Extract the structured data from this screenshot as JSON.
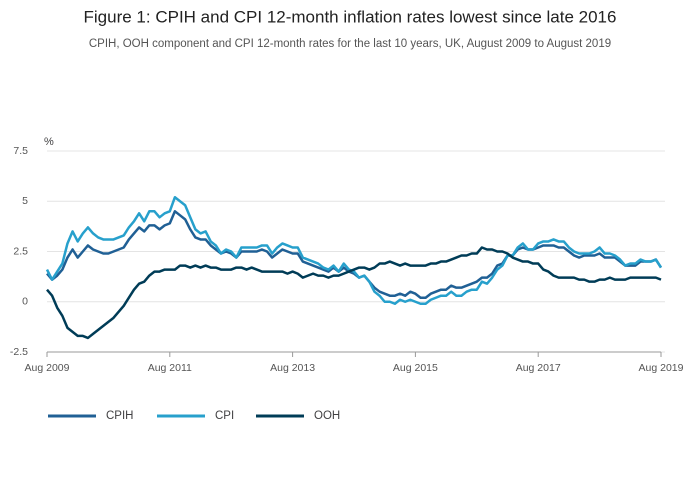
{
  "chart_data": {
    "type": "line",
    "title": "Figure 1: CPIH and CPI 12-month inflation rates lowest since late 2016",
    "subtitle": "CPIH, OOH component and CPI 12-month rates for the last 10 years, UK, August 2009 to August 2019",
    "y_label": "%",
    "categories": [
      "Aug 2009",
      null,
      null,
      null,
      null,
      null,
      null,
      null,
      null,
      null,
      null,
      null,
      null,
      null,
      null,
      null,
      null,
      null,
      null,
      null,
      null,
      null,
      null,
      null,
      "Aug 2011",
      null,
      null,
      null,
      null,
      null,
      null,
      null,
      null,
      null,
      null,
      null,
      null,
      null,
      null,
      null,
      null,
      null,
      null,
      null,
      null,
      null,
      null,
      null,
      "Aug 2013",
      null,
      null,
      null,
      null,
      null,
      null,
      null,
      null,
      null,
      null,
      null,
      null,
      null,
      null,
      null,
      null,
      null,
      null,
      null,
      null,
      null,
      null,
      null,
      "Aug 2015",
      null,
      null,
      null,
      null,
      null,
      null,
      null,
      null,
      null,
      null,
      null,
      null,
      null,
      null,
      null,
      null,
      null,
      null,
      null,
      null,
      null,
      null,
      null,
      "Aug 2017",
      null,
      null,
      null,
      null,
      null,
      null,
      null,
      null,
      null,
      null,
      null,
      null,
      null,
      null,
      null,
      null,
      null,
      null,
      null,
      null,
      null,
      null,
      null,
      "Aug 2019"
    ],
    "ylim": [
      -2.5,
      7.5
    ],
    "yticks": [
      -2.5,
      0,
      2.5,
      5,
      7.5
    ],
    "grid": true,
    "legend": "bottom-left",
    "series": [
      {
        "name": "CPIH",
        "color": "#206095",
        "values": [
          1.4,
          1.1,
          1.3,
          1.6,
          2.2,
          2.6,
          2.2,
          2.5,
          2.8,
          2.6,
          2.5,
          2.4,
          2.4,
          2.5,
          2.6,
          2.7,
          3.1,
          3.4,
          3.7,
          3.5,
          3.8,
          3.8,
          3.6,
          3.8,
          3.9,
          4.5,
          4.3,
          4.1,
          3.6,
          3.2,
          3.1,
          3.1,
          2.8,
          2.6,
          2.4,
          2.5,
          2.4,
          2.2,
          2.5,
          2.5,
          2.5,
          2.5,
          2.6,
          2.5,
          2.2,
          2.4,
          2.6,
          2.5,
          2.4,
          2.4,
          2.0,
          1.9,
          1.8,
          1.7,
          1.6,
          1.5,
          1.7,
          1.5,
          1.7,
          1.5,
          1.4,
          1.2,
          1.3,
          1.0,
          0.7,
          0.5,
          0.4,
          0.3,
          0.3,
          0.4,
          0.3,
          0.5,
          0.4,
          0.2,
          0.2,
          0.4,
          0.5,
          0.6,
          0.6,
          0.8,
          0.7,
          0.7,
          0.8,
          0.9,
          1.0,
          1.2,
          1.2,
          1.4,
          1.8,
          1.9,
          2.3,
          2.3,
          2.6,
          2.7,
          2.6,
          2.6,
          2.7,
          2.8,
          2.8,
          2.8,
          2.7,
          2.7,
          2.5,
          2.3,
          2.2,
          2.3,
          2.3,
          2.3,
          2.4,
          2.2,
          2.2,
          2.2,
          2.0,
          1.8,
          1.8,
          1.8,
          2.0,
          2.0,
          2.0,
          2.1,
          1.7
        ]
      },
      {
        "name": "CPI",
        "color": "#27a0cc",
        "values": [
          1.6,
          1.1,
          1.5,
          1.9,
          2.9,
          3.5,
          3.0,
          3.4,
          3.7,
          3.4,
          3.2,
          3.1,
          3.1,
          3.1,
          3.2,
          3.3,
          3.7,
          4.0,
          4.4,
          4.0,
          4.5,
          4.5,
          4.2,
          4.4,
          4.5,
          5.2,
          5.0,
          4.8,
          4.2,
          3.6,
          3.4,
          3.5,
          3.0,
          2.8,
          2.4,
          2.6,
          2.5,
          2.2,
          2.7,
          2.7,
          2.7,
          2.7,
          2.8,
          2.8,
          2.4,
          2.7,
          2.9,
          2.8,
          2.7,
          2.7,
          2.2,
          2.1,
          2.0,
          1.9,
          1.7,
          1.6,
          1.8,
          1.5,
          1.9,
          1.6,
          1.5,
          1.2,
          1.3,
          1.0,
          0.5,
          0.3,
          0.0,
          0.0,
          -0.1,
          0.1,
          0.0,
          0.1,
          0.0,
          -0.1,
          -0.1,
          0.1,
          0.2,
          0.3,
          0.3,
          0.5,
          0.3,
          0.3,
          0.5,
          0.6,
          0.6,
          1.0,
          0.9,
          1.2,
          1.6,
          1.8,
          2.3,
          2.3,
          2.7,
          2.9,
          2.6,
          2.6,
          2.9,
          3.0,
          3.0,
          3.1,
          3.0,
          3.0,
          2.7,
          2.5,
          2.4,
          2.4,
          2.4,
          2.5,
          2.7,
          2.4,
          2.4,
          2.3,
          2.1,
          1.8,
          1.9,
          1.9,
          2.1,
          2.0,
          2.0,
          2.1,
          1.7
        ]
      },
      {
        "name": "OOH",
        "color": "#003c57",
        "values": [
          0.6,
          0.3,
          -0.3,
          -0.7,
          -1.3,
          -1.5,
          -1.7,
          -1.7,
          -1.8,
          -1.6,
          -1.4,
          -1.2,
          -1.0,
          -0.8,
          -0.5,
          -0.2,
          0.2,
          0.6,
          0.9,
          1.0,
          1.3,
          1.5,
          1.5,
          1.6,
          1.6,
          1.6,
          1.8,
          1.8,
          1.7,
          1.8,
          1.7,
          1.8,
          1.7,
          1.7,
          1.6,
          1.6,
          1.6,
          1.7,
          1.7,
          1.6,
          1.7,
          1.6,
          1.5,
          1.5,
          1.5,
          1.5,
          1.5,
          1.4,
          1.5,
          1.4,
          1.2,
          1.3,
          1.4,
          1.3,
          1.3,
          1.2,
          1.3,
          1.3,
          1.4,
          1.5,
          1.6,
          1.7,
          1.7,
          1.6,
          1.7,
          1.9,
          1.9,
          2.0,
          1.9,
          1.8,
          1.9,
          1.8,
          1.8,
          1.8,
          1.8,
          1.9,
          1.9,
          2.0,
          2.0,
          2.1,
          2.2,
          2.3,
          2.3,
          2.4,
          2.4,
          2.7,
          2.6,
          2.6,
          2.5,
          2.5,
          2.4,
          2.2,
          2.1,
          2.0,
          2.0,
          1.9,
          1.9,
          1.6,
          1.5,
          1.3,
          1.2,
          1.2,
          1.2,
          1.2,
          1.1,
          1.1,
          1.0,
          1.0,
          1.1,
          1.1,
          1.2,
          1.1,
          1.1,
          1.1,
          1.2,
          1.2,
          1.2,
          1.2,
          1.2,
          1.2,
          1.1
        ]
      }
    ]
  }
}
